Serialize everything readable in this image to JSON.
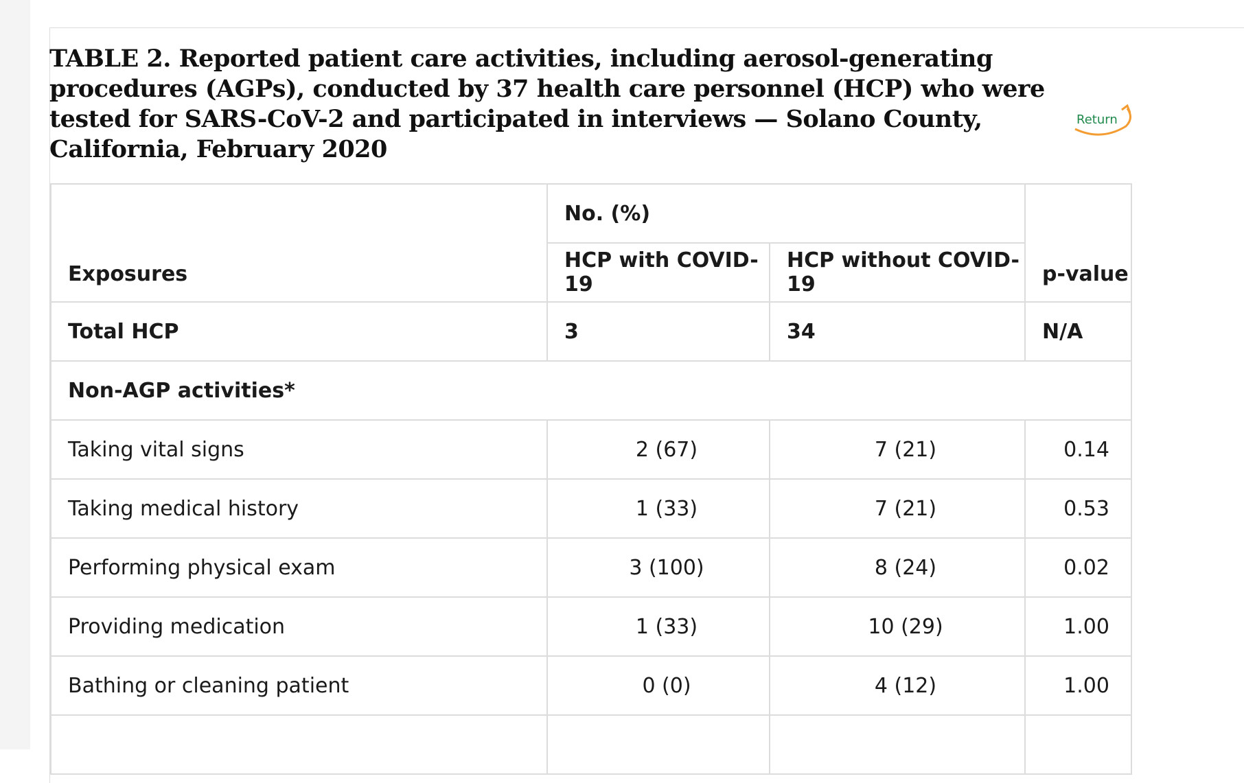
{
  "caption": "TABLE 2. Reported patient care activities, including aerosol-generating procedures (AGPs), conducted by 37 health care personnel (HCP) who were tested for SARS-CoV-2 and participated in interviews — Solano County, California, February 2020",
  "return_label": "Return",
  "colors": {
    "return_text": "#1f8a4c",
    "return_arrow": "#f39c32",
    "border": "#dcdcdc"
  },
  "table": {
    "header": {
      "exposures": "Exposures",
      "group": "No. (%)",
      "with_covid": "HCP with COVID-19",
      "without_covid": "HCP without COVID-19",
      "p_value": "p-value"
    },
    "total": {
      "label": "Total HCP",
      "with": "3",
      "without": "34",
      "p": "N/A"
    },
    "section": "Non-AGP activities*",
    "rows": [
      {
        "label": "Taking vital signs",
        "with": "2 (67)",
        "without": "7 (21)",
        "p": "0.14"
      },
      {
        "label": "Taking medical history",
        "with": "1 (33)",
        "without": "7 (21)",
        "p": "0.53"
      },
      {
        "label": "Performing physical exam",
        "with": "3 (100)",
        "without": "8 (24)",
        "p": "0.02"
      },
      {
        "label": "Providing medication",
        "with": "1 (33)",
        "without": "10 (29)",
        "p": "1.00"
      },
      {
        "label": "Bathing or cleaning patient",
        "with": "0 (0)",
        "without": "4 (12)",
        "p": "1.00"
      }
    ]
  }
}
